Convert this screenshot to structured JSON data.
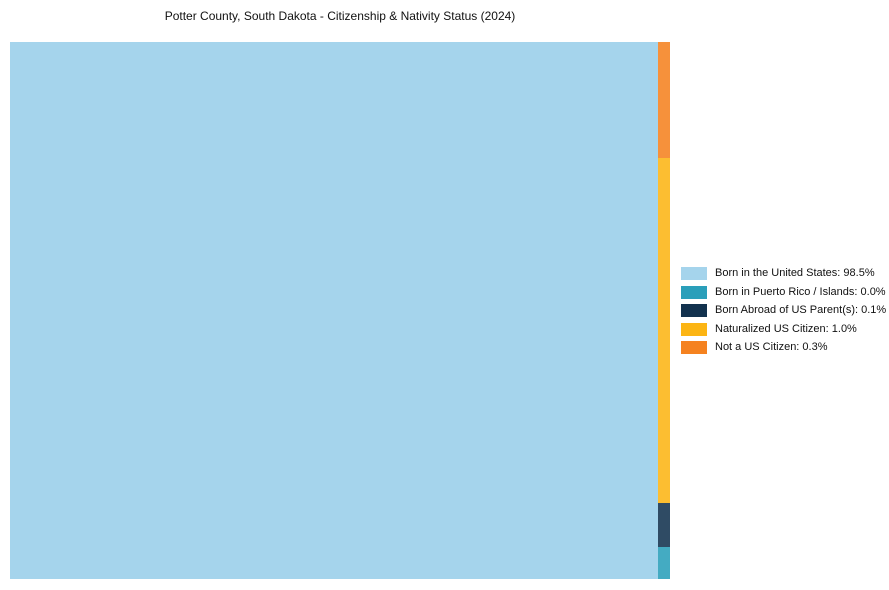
{
  "chart_data": {
    "type": "treemap",
    "title": "Potter County, South Dakota - Citizenship & Nativity Status (2024)",
    "unit": "percent",
    "legend_position": "right",
    "series": [
      {
        "label": "Born in the United States",
        "value": 98.5,
        "color": "#A5D4EC",
        "region": "main-left-block"
      },
      {
        "label": "Born in Puerto Rico / Islands",
        "value": 0.0,
        "color": "#2A9FBA",
        "region": "right-strip-bottom"
      },
      {
        "label": "Born Abroad of US Parent(s)",
        "value": 0.1,
        "color": "#12324E",
        "region": "right-strip-third"
      },
      {
        "label": "Naturalized US Citizen",
        "value": 1.0,
        "color": "#FCB514",
        "region": "right-strip-second"
      },
      {
        "label": "Not a US Citizen",
        "value": 0.3,
        "color": "#F58220",
        "region": "right-strip-top"
      }
    ]
  },
  "legend": {
    "items": [
      {
        "label": "Born in the United States: 98.5%",
        "color": "#A5D4EC"
      },
      {
        "label": "Born in Puerto Rico / Islands: 0.0%",
        "color": "#2A9FBA"
      },
      {
        "label": "Born Abroad of US Parent(s): 0.1%",
        "color": "#12324E"
      },
      {
        "label": "Naturalized US Citizen: 1.0%",
        "color": "#FCB514"
      },
      {
        "label": "Not a US Citizen: 0.3%",
        "color": "#F58220"
      }
    ]
  }
}
